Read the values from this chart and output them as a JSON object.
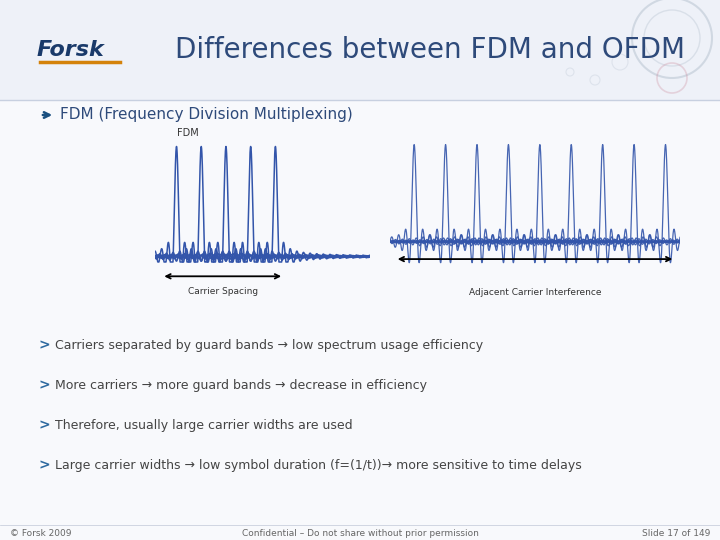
{
  "title": "Differences between FDM and OFDM",
  "title_color": "#2E4A7A",
  "title_fontsize": 20,
  "bg_top": "#F0F2F8",
  "bg_bottom": "#FFFFFF",
  "header_text": "FDM (Frequency Division Multiplexing)",
  "header_color": "#2E4A7A",
  "header_fontsize": 11,
  "fdm_label": "FDM",
  "carrier_spacing_label": "Carrier Spacing",
  "adjacent_label": "Adjacent Carrier Interference",
  "bullet_color": "#2E6AA0",
  "bullets": [
    "Carriers separated by guard bands → low spectrum usage efficiency",
    "More carriers → more guard bands → decrease in efficiency",
    "Therefore, usually large carrier widths are used",
    "Large carrier widths → low symbol duration (f=(1/t))→ more sensitive to time delays"
  ],
  "footer_left": "© Forsk 2009",
  "footer_center": "Confidential – Do not share without prior permission",
  "footer_right": "Slide 17 of 149",
  "carrier_color": "#3355AA"
}
